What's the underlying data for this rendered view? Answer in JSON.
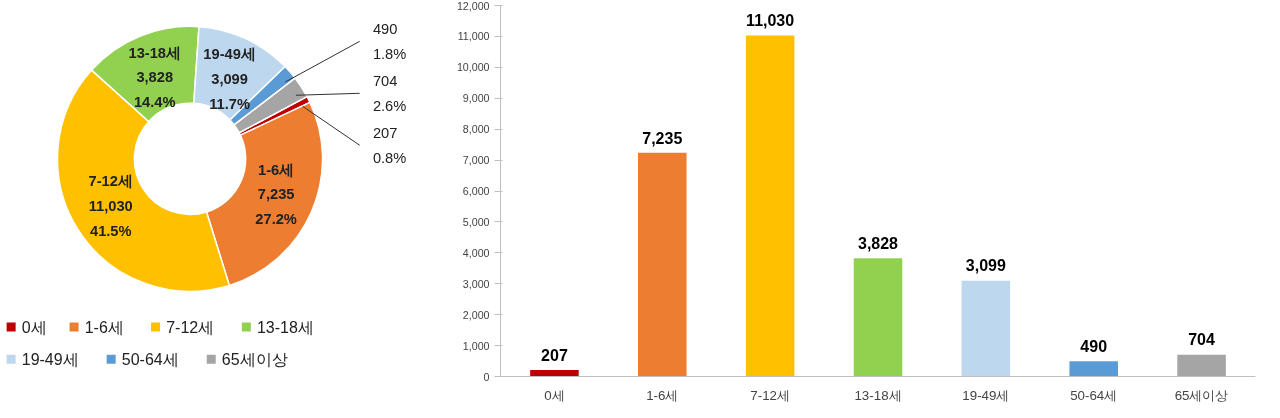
{
  "chart_data": [
    {
      "type": "donut",
      "categories": [
        "0세",
        "1-6세",
        "7-12세",
        "13-18세",
        "19-49세",
        "50-64세",
        "65세이상"
      ],
      "values": [
        207,
        7235,
        11030,
        3828,
        3099,
        490,
        704
      ],
      "colors": [
        "#c00000",
        "#ed7d31",
        "#ffc000",
        "#92d050",
        "#bdd7ee",
        "#5b9bd5",
        "#a5a5a5"
      ],
      "value_labels": [
        "207\n0.8%",
        "1-6세\n7,235\n27.2%",
        "7-12세\n11,030\n41.5%",
        "13-18세\n3,828\n14.4%",
        "19-49세\n3,099\n11.7%",
        "490\n1.8%",
        "704\n2.6%"
      ],
      "legend": "bottom"
    },
    {
      "type": "bar",
      "categories": [
        "0세",
        "1-6세",
        "7-12세",
        "13-18세",
        "19-49세",
        "50-64세",
        "65세이상"
      ],
      "values": [
        207,
        7235,
        11030,
        3828,
        3099,
        490,
        704
      ],
      "colors": [
        "#c00000",
        "#ed7d31",
        "#ffc000",
        "#92d050",
        "#bdd7ee",
        "#5b9bd5",
        "#a5a5a5"
      ],
      "value_labels": [
        "207",
        "7,235",
        "11,030",
        "3,828",
        "3,099",
        "490",
        "704"
      ],
      "ylim": [
        0,
        12000
      ],
      "yticks": [
        0,
        {
          "value": 1000,
          "label": "1,000"
        },
        {
          "value": 2000,
          "label": "2,000"
        },
        {
          "value": 3000,
          "label": "3,000"
        },
        {
          "value": 4000,
          "label": "4,000"
        },
        {
          "value": 5000,
          "label": "5,000"
        },
        {
          "value": 6000,
          "label": "6,000"
        },
        {
          "value": 7000,
          "label": "7,000"
        },
        {
          "value": 8000,
          "label": "8,000"
        },
        {
          "value": 9000,
          "label": "9,000"
        },
        {
          "value": 10000,
          "label": "10,000"
        },
        {
          "value": 11000,
          "label": "11,000"
        },
        {
          "value": 12000,
          "label": "12,000"
        }
      ],
      "grid": false
    }
  ]
}
